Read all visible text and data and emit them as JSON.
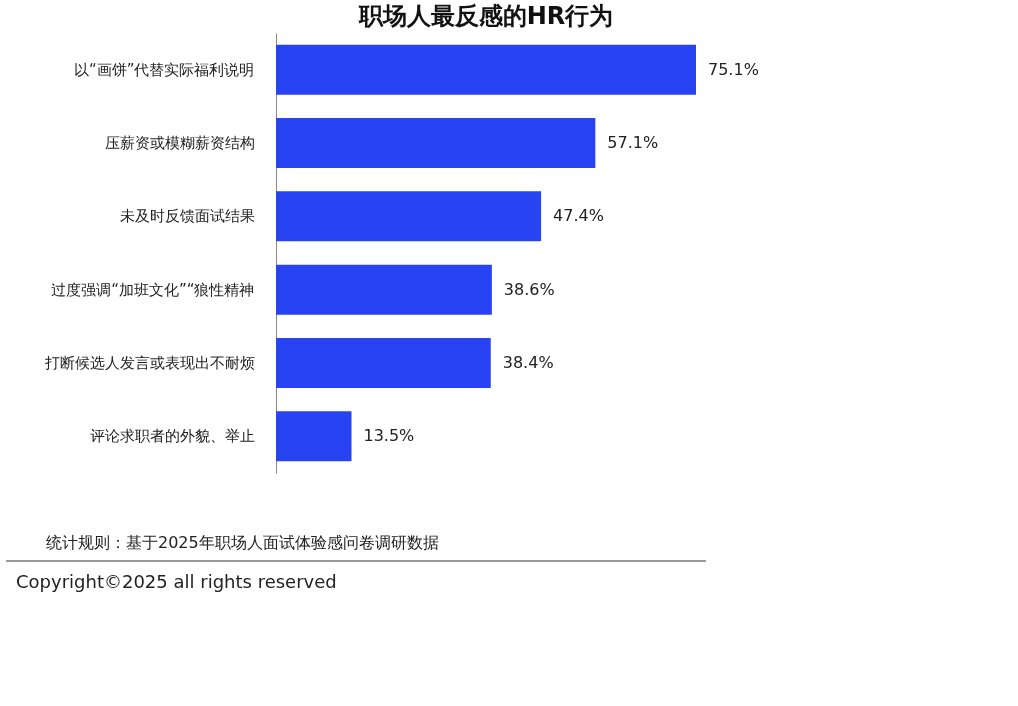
{
  "chart_data": {
    "type": "bar",
    "orientation": "horizontal",
    "title": "职场人最反感的HR行为",
    "categories": [
      "以“画饼”代替实际福利说明",
      "压薪资或模糊薪资结构",
      "未及时反馈面试结果",
      "过度强调“加班文化”“狼性精神",
      "打断候选人发言或表现出不耐烦",
      "评论求职者的外貌、举止"
    ],
    "values": [
      75.1,
      57.1,
      47.4,
      38.6,
      38.4,
      13.5
    ],
    "value_labels": [
      "75.1%",
      "57.1%",
      "47.4%",
      "38.6%",
      "38.4%",
      "13.5%"
    ],
    "color": "#2743f2",
    "grid": false,
    "annotations": [
      "统计规则：基于2025年职场人面试体验感问卷调研数据",
      "Copyright©2025 all rights reserved"
    ]
  }
}
